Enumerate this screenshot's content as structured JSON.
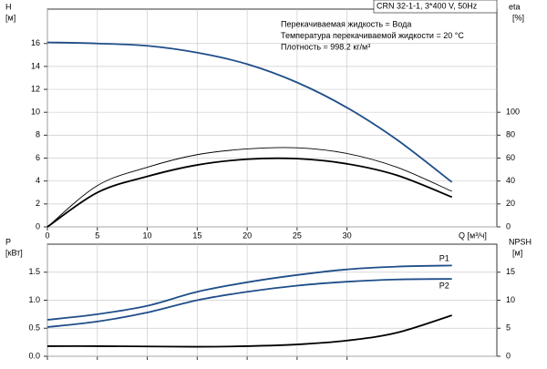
{
  "chart_data": [
    {
      "type": "line",
      "title": "CRN 32-1-1, 3*400 V, 50Hz",
      "annotations": [
        "Перекачиваемая жидкость = Вода",
        "Температура перекачиваемой жидкости = 20 °C",
        "Плотность = 998.2 кг/м³"
      ],
      "xlabel": "Q [м³/ч]",
      "ylabel": "H",
      "yunit": "[м]",
      "y2label": "eta",
      "y2unit": "[%]",
      "x": [
        0,
        5,
        10,
        15,
        20,
        25,
        30,
        35,
        40.5
      ],
      "series": [
        {
          "color": "#1f4e89",
          "values": [
            16.1,
            16.0,
            15.8,
            15.2,
            14.2,
            12.6,
            10.4,
            7.6,
            3.9
          ]
        },
        {
          "color": "#000000",
          "axis": "y2",
          "values": [
            0,
            36,
            52,
            63,
            68,
            69,
            64,
            52,
            31
          ]
        },
        {
          "color": "#000000",
          "axis": "y2",
          "values": [
            0,
            30,
            44,
            54,
            59,
            59.5,
            55,
            45,
            26
          ]
        }
      ],
      "xlim": [
        0,
        45
      ],
      "xticks": [
        0,
        5,
        10,
        15,
        20,
        25,
        30
      ],
      "ylim": [
        0,
        19
      ],
      "yticks": [
        0,
        2,
        4,
        6,
        8,
        10,
        12,
        14,
        16
      ],
      "y2lim": [
        0,
        190
      ],
      "y2ticks": [
        0,
        20,
        40,
        60,
        80,
        100
      ],
      "grid": true
    },
    {
      "type": "line",
      "ylabel": "P",
      "yunit": "[кВт]",
      "y2label": "NPSH",
      "y2unit": "[м]",
      "x": [
        0,
        5,
        10,
        15,
        20,
        25,
        30,
        35,
        40.5
      ],
      "series": [
        {
          "name": "P1",
          "color": "#1f4e89",
          "values": [
            0.65,
            0.75,
            0.9,
            1.15,
            1.32,
            1.45,
            1.55,
            1.6,
            1.62
          ]
        },
        {
          "name": "P2",
          "color": "#1f4e89",
          "values": [
            0.52,
            0.62,
            0.78,
            1.0,
            1.15,
            1.26,
            1.33,
            1.37,
            1.38
          ]
        },
        {
          "color": "#000000",
          "axis": "y2",
          "values": [
            1.8,
            1.8,
            1.75,
            1.7,
            1.8,
            2.1,
            2.8,
            4.2,
            7.3
          ]
        }
      ],
      "xlim": [
        0,
        45
      ],
      "xticks": [
        0,
        5,
        10,
        15,
        20,
        25,
        30
      ],
      "ylim": [
        0,
        2
      ],
      "yticks": [
        {
          "value": 0,
          "label": "0.0"
        },
        0.5,
        {
          "value": 1,
          "label": "1.0"
        },
        1.5
      ],
      "y2lim": [
        0,
        20
      ],
      "y2ticks": [
        0,
        5,
        10,
        15
      ],
      "grid": true
    }
  ]
}
